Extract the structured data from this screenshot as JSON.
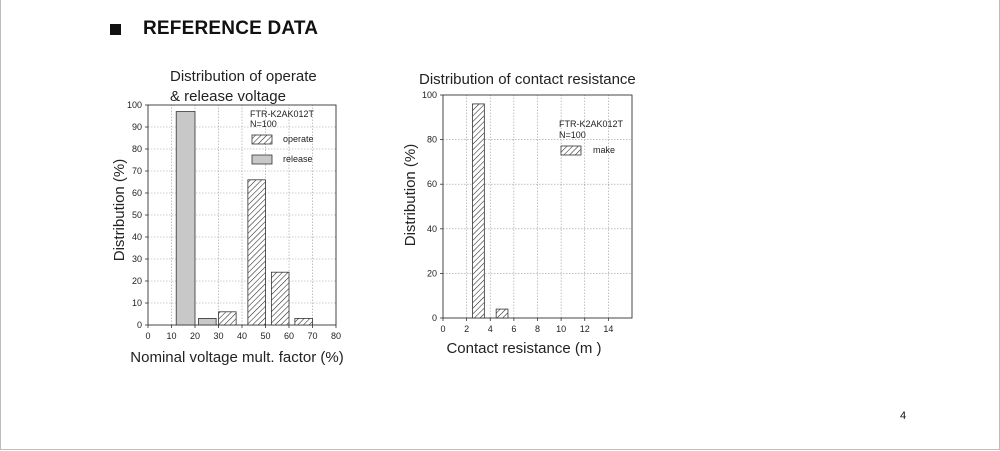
{
  "page": {
    "heading": "REFERENCE DATA",
    "page_number": "4"
  },
  "chart_data": [
    {
      "type": "bar",
      "title_lines": [
        "Distribution of operate",
        "& release voltage"
      ],
      "xlabel": "Nominal voltage mult. factor (%)",
      "ylabel": "Distribution (%)",
      "xlim": [
        0,
        80
      ],
      "ylim": [
        0,
        100
      ],
      "xticks": [
        0,
        10,
        20,
        30,
        40,
        50,
        60,
        70,
        80
      ],
      "yticks": [
        0,
        10,
        20,
        30,
        40,
        50,
        60,
        70,
        80,
        90,
        100
      ],
      "grid": true,
      "note_lines": [
        "FTR-K2AK012T",
        "N=100"
      ],
      "series": [
        {
          "name": "operate",
          "pattern": "hatch",
          "color": "#222222",
          "bars": [
            {
              "x": [
                30,
                37.5
              ],
              "value": 6
            },
            {
              "x": [
                42.5,
                50
              ],
              "value": 66
            },
            {
              "x": [
                52.5,
                60
              ],
              "value": 24
            },
            {
              "x": [
                62.5,
                70
              ],
              "value": 3
            }
          ]
        },
        {
          "name": "release",
          "pattern": "solid",
          "color": "#c8c8c8",
          "bars": [
            {
              "x": [
                12,
                20
              ],
              "value": 97
            },
            {
              "x": [
                21.5,
                29
              ],
              "value": 3
            }
          ]
        }
      ]
    },
    {
      "type": "bar",
      "title_lines": [
        "Distribution of contact resistance"
      ],
      "xlabel": "Contact resistance (m )",
      "ylabel": "Distribution (%)",
      "xlim": [
        0,
        16
      ],
      "ylim": [
        0,
        100
      ],
      "xticks": [
        0,
        2,
        4,
        6,
        8,
        10,
        12,
        14
      ],
      "yticks": [
        0,
        20,
        40,
        60,
        80,
        100
      ],
      "grid": true,
      "note_lines": [
        "FTR-K2AK012T",
        "N=100"
      ],
      "series": [
        {
          "name": "make",
          "pattern": "hatch",
          "color": "#222222",
          "bars": [
            {
              "x": [
                2.5,
                3.5
              ],
              "value": 96
            },
            {
              "x": [
                4.5,
                5.5
              ],
              "value": 4
            }
          ]
        }
      ]
    }
  ]
}
